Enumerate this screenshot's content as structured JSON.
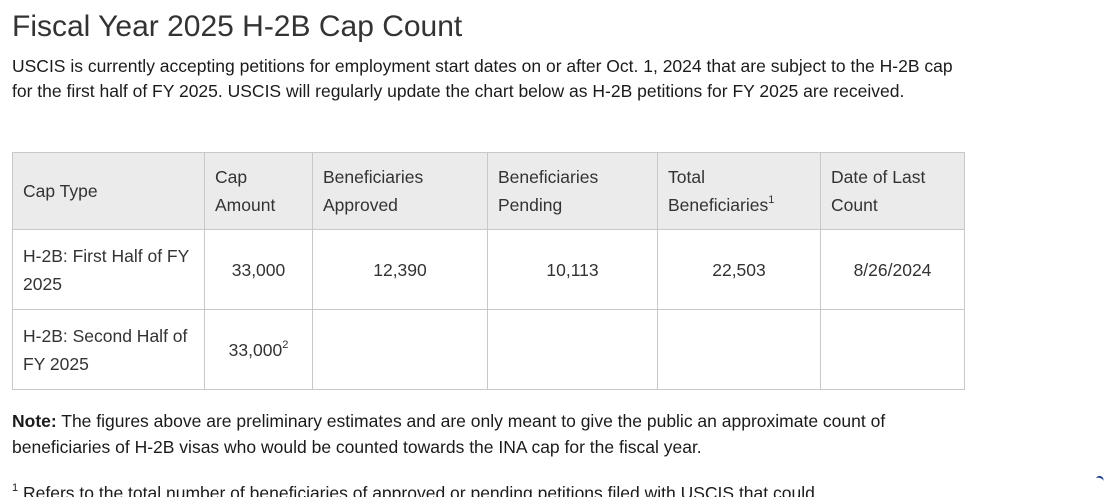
{
  "page": {
    "title": "Fiscal Year 2025 H-2B Cap Count",
    "intro": "USCIS is currently accepting petitions for employment start dates on or after Oct. 1, 2024 that are subject to the H-2B cap for the first half of FY 2025.  USCIS will regularly update the chart below as H-2B petitions for FY 2025 are received."
  },
  "table": {
    "headers": {
      "cap_type": "Cap Type",
      "cap_amount": "Cap Amount",
      "approved": "Beneficiaries Approved",
      "pending": "Beneficiaries Pending",
      "total": "Total Beneficiaries",
      "total_sup": "1",
      "date": "Date of Last Count"
    },
    "rows": [
      {
        "cap_type": "H-2B: First Half of FY 2025",
        "cap_amount": "33,000",
        "cap_amount_sup": "",
        "approved": "12,390",
        "pending": "10,113",
        "total": "22,503",
        "date": "8/26/2024"
      },
      {
        "cap_type": "H-2B: Second Half of FY 2025",
        "cap_amount": "33,000",
        "cap_amount_sup": "2",
        "approved": "",
        "pending": "",
        "total": "",
        "date": ""
      }
    ]
  },
  "note": {
    "label": "Note:",
    "text": " The figures above are preliminary estimates and are only meant to give the public an approximate count of beneficiaries of H-2B visas who would be counted towards the INA cap for the fiscal year."
  },
  "footnote": {
    "marker": "1",
    "text": " Refers to the total number of beneficiaries of approved or pending petitions filed with USCIS that could"
  }
}
